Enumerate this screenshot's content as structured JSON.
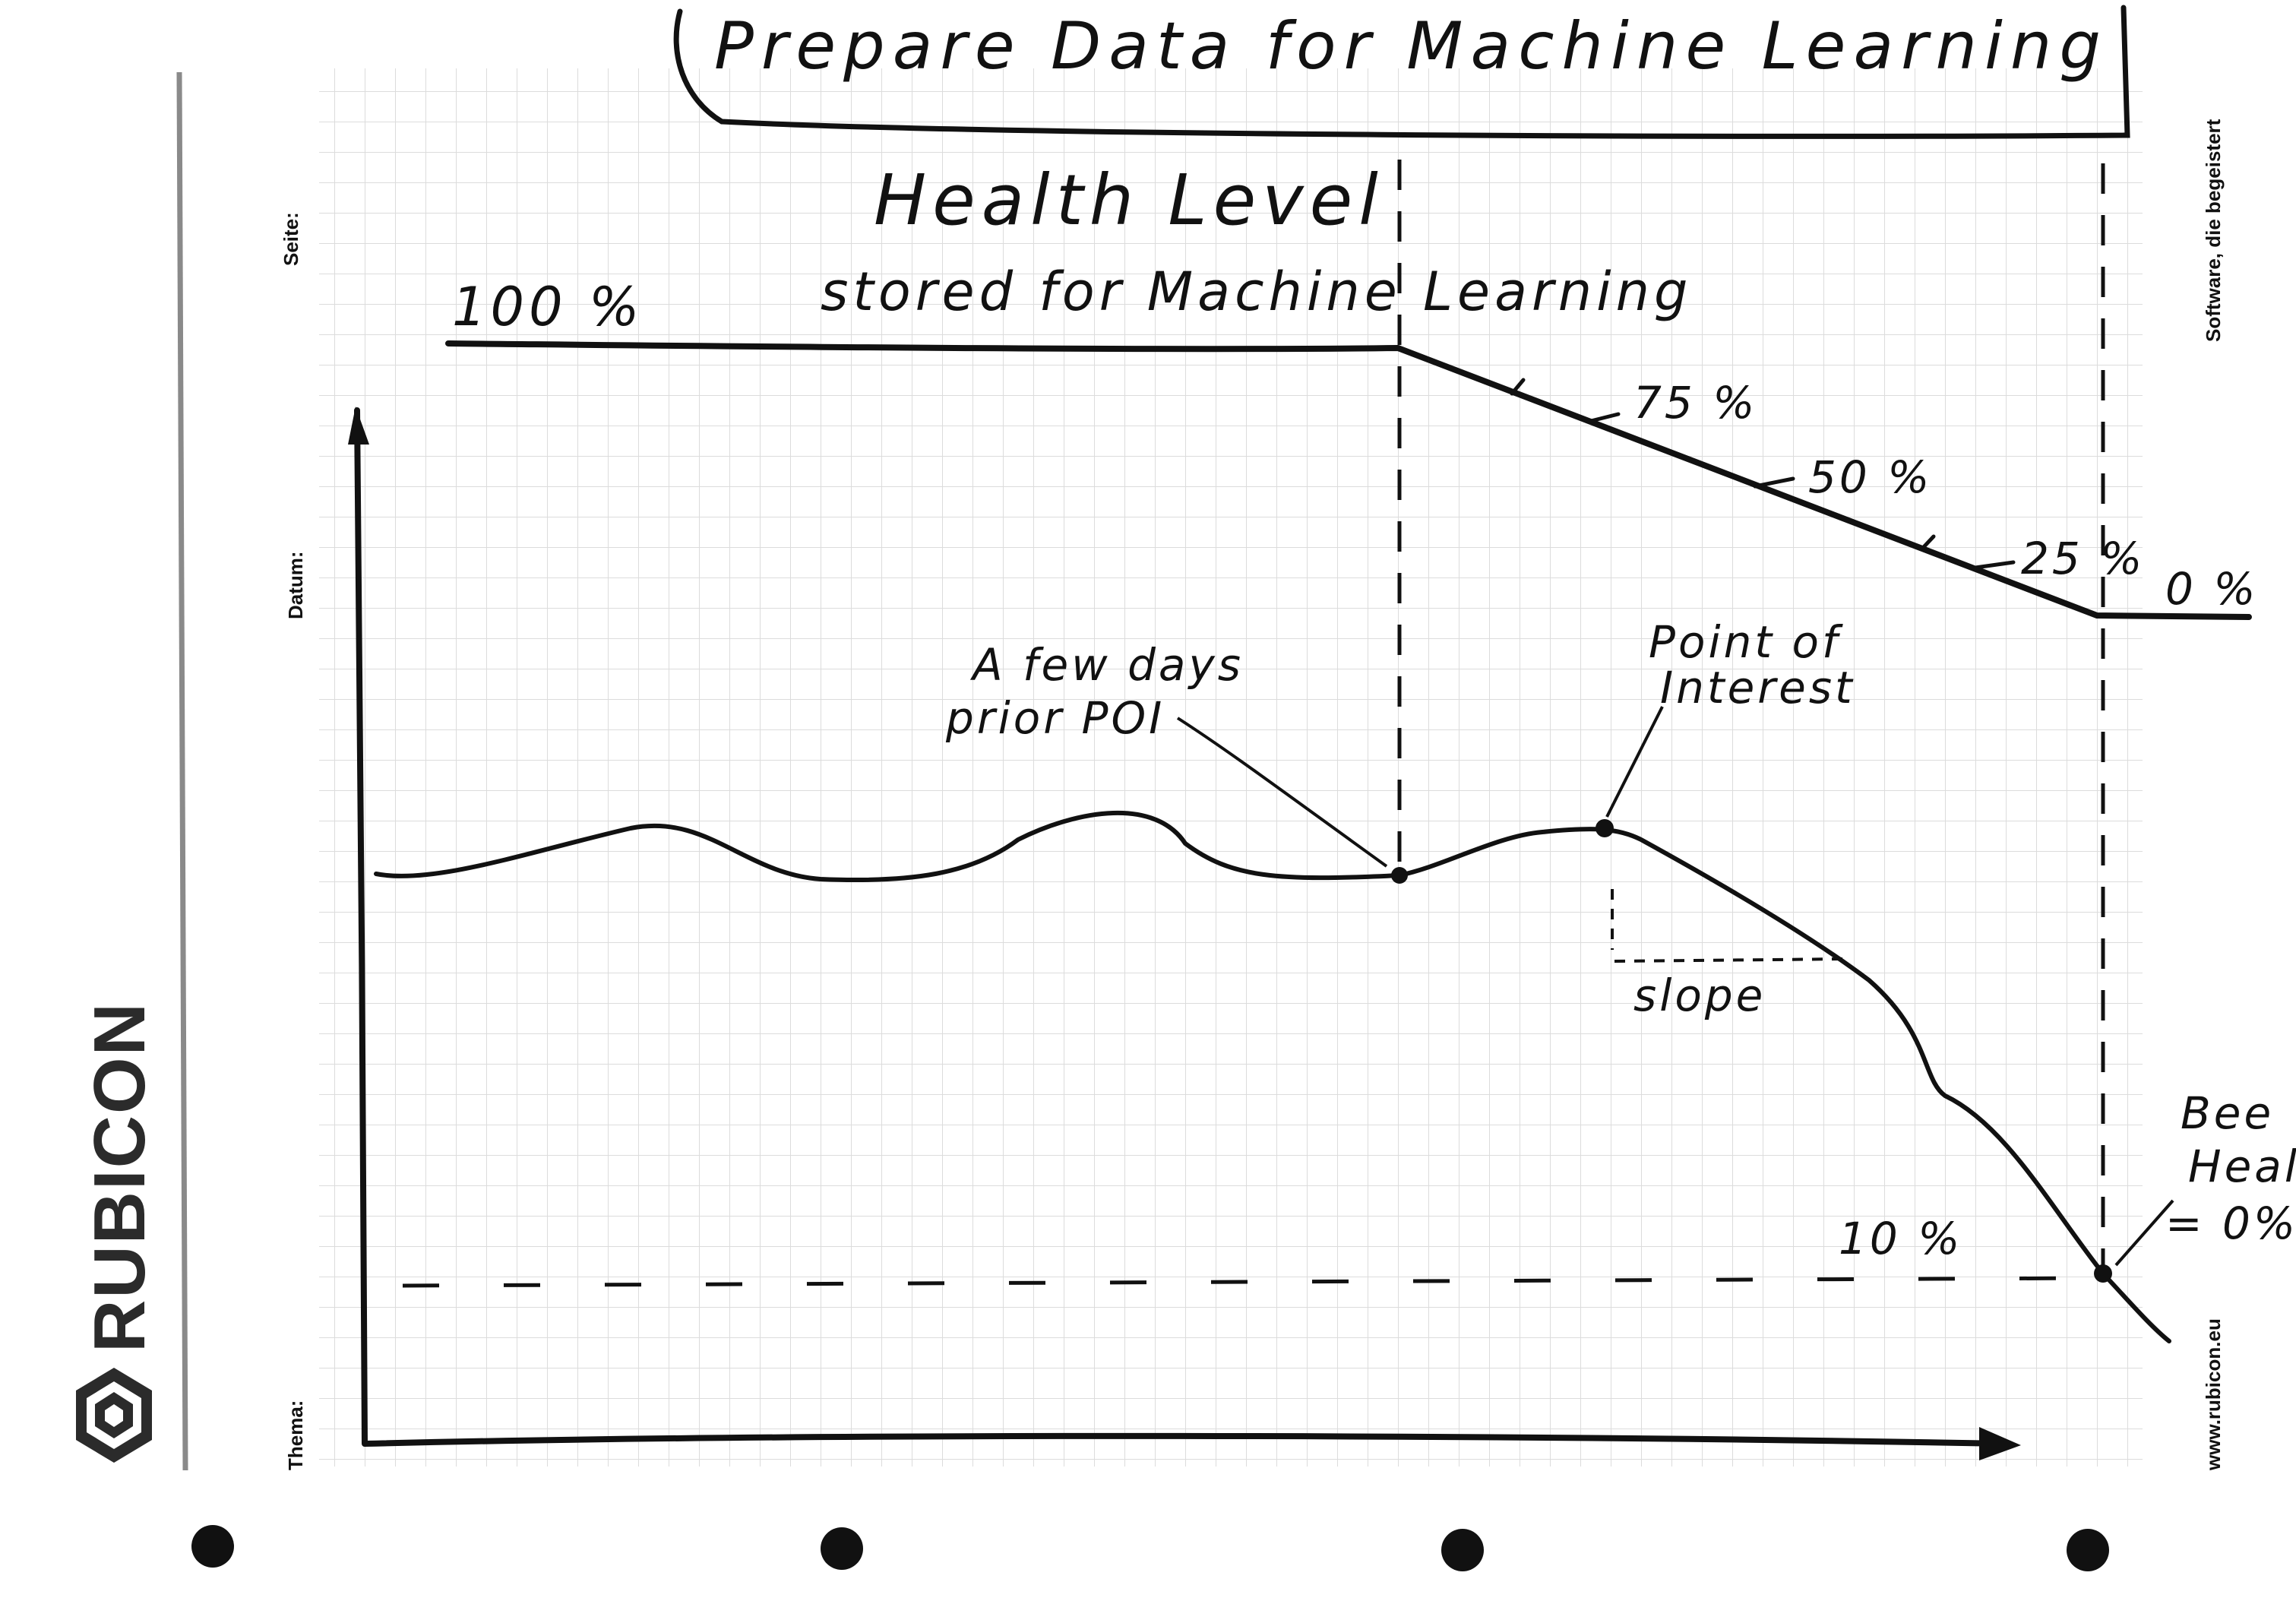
{
  "title": "Prepare Data for Machine Learning",
  "health_level": {
    "heading": "Health Level",
    "subheading": "stored for Machine Learning",
    "start_label": "100 %",
    "tick_labels": [
      "75 %",
      "50 %",
      "25 %"
    ],
    "end_label": "0 %"
  },
  "annotations": {
    "few_days_line1": "A few days",
    "few_days_line2": "prior POI",
    "poi_line1": "Point of",
    "poi_line2": "Interest",
    "slope": "slope",
    "ten_percent": "10 %",
    "bee_line1": "Bee",
    "bee_line2": "Health",
    "bee_line3": "= 0%"
  },
  "form": {
    "seite": "Seite:",
    "datum": "Datum:",
    "thema": "Thema:",
    "tagline": "Software, die begeistert",
    "website": "www.rubicon.eu",
    "brand": "RUBICON"
  },
  "colors": {
    "ink": "#111111",
    "grid": "#d9d9d9",
    "logo": "#2b2b2b"
  }
}
